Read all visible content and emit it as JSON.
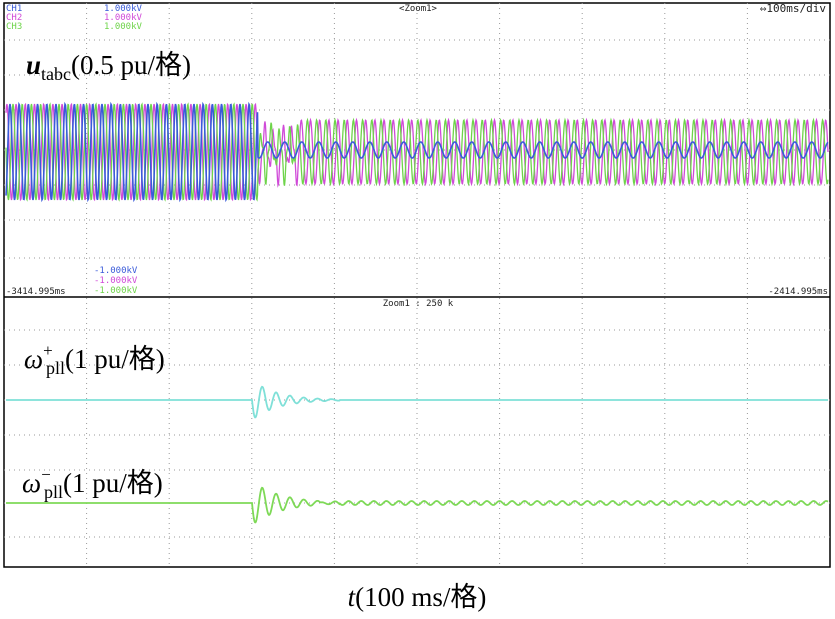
{
  "scope": {
    "top_panel": {
      "channels": [
        "CH1",
        "CH2",
        "CH3"
      ],
      "upper_scales": [
        "1.000kV",
        "1.000kV",
        "1.000kV"
      ],
      "lower_scales": [
        "-1.000kV",
        "-1.000kV",
        "-1.000kV"
      ],
      "zoom_tag": "<Zoom1>",
      "timebase": "⇔100ms/div",
      "start_time": "-3414.995ms",
      "end_time": "-2414.995ms",
      "label": {
        "symbol": "u",
        "subscript": "tabc",
        "text": "(0.5 pu/格)"
      }
    },
    "bottom_panel": {
      "zoom_info": "Zoom1 : 250 k",
      "labels": [
        {
          "symbol": "ω",
          "superscript": "+",
          "subscript": "pll",
          "text": "(1 pu/格)"
        },
        {
          "symbol": "ω",
          "superscript": "−",
          "subscript": "pll",
          "text": "(1 pu/格)"
        }
      ]
    },
    "caption": {
      "symbol": "t",
      "text": "(100 ms/格)"
    }
  }
}
